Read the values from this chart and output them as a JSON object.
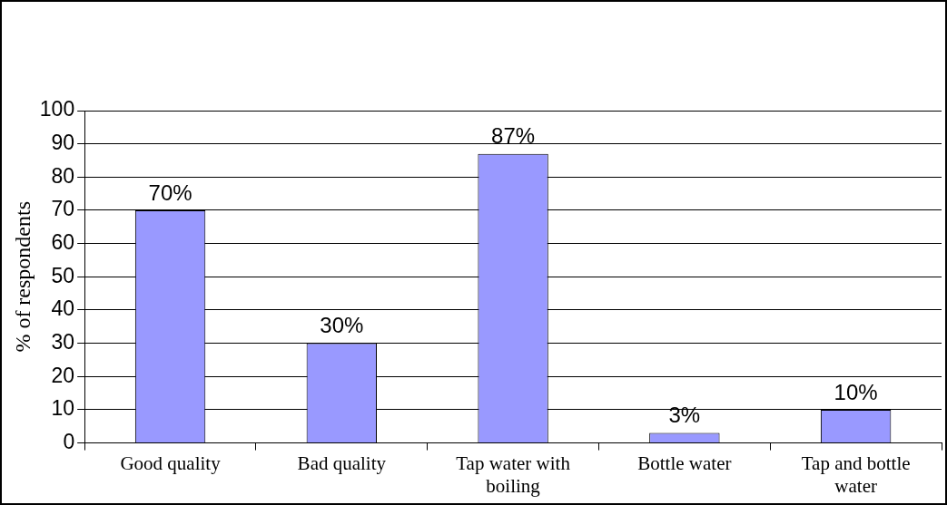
{
  "chart_data": {
    "type": "bar",
    "ylabel": "% of respondents",
    "categories": [
      "Good quality",
      "Bad quality",
      "Tap water with boiling",
      "Bottle water",
      "Tap and bottle water"
    ],
    "values": [
      70,
      30,
      87,
      3,
      10
    ],
    "color": "#9999ff",
    "value_labels": [
      "70%",
      "30%",
      "87%",
      "3%",
      "10%"
    ],
    "ylim": [
      0,
      100
    ],
    "yticks": [
      0,
      10,
      20,
      30,
      40,
      50,
      60,
      70,
      80,
      90,
      100
    ],
    "grid": "y",
    "legend": false
  }
}
